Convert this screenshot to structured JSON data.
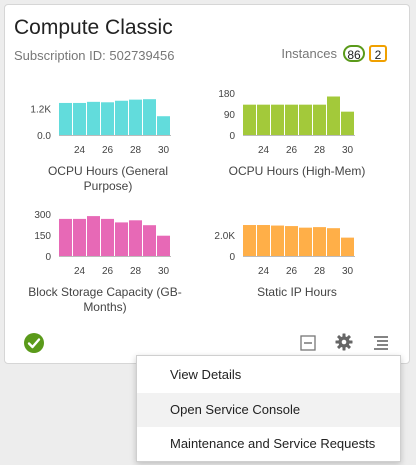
{
  "card": {
    "title": "Compute Classic",
    "subscription": "Subscription ID: 502739456",
    "instances_label": "Instances",
    "instances_green": "86",
    "instances_orange": "2"
  },
  "chart_data": [
    {
      "type": "bar",
      "title": "OCPU Hours (General Purpose)",
      "color": "#62dcdc",
      "categories": [
        23,
        24,
        25,
        26,
        27,
        28,
        29,
        30
      ],
      "values": [
        1450,
        1450,
        1500,
        1480,
        1550,
        1600,
        1620,
        850
      ],
      "ylim": [
        0,
        1900
      ],
      "yticks": [
        {
          "v": 0,
          "label": "0.0"
        },
        {
          "v": 1200,
          "label": "1.2K"
        }
      ],
      "xticks": [
        "24",
        "26",
        "28",
        "30"
      ]
    },
    {
      "type": "bar",
      "title": "OCPU Hours (High-Mem)",
      "color": "#a3c93a",
      "categories": [
        23,
        24,
        25,
        26,
        27,
        28,
        29,
        30
      ],
      "values": [
        130,
        130,
        130,
        130,
        130,
        130,
        165,
        100
      ],
      "ylim": [
        0,
        180
      ],
      "yticks": [
        {
          "v": 0,
          "label": "0"
        },
        {
          "v": 90,
          "label": "90"
        },
        {
          "v": 180,
          "label": "180"
        }
      ],
      "xticks": [
        "24",
        "26",
        "28",
        "30"
      ]
    },
    {
      "type": "bar",
      "title": "Block Storage Capacity (GB-Months)",
      "color": "#e769b6",
      "categories": [
        23,
        24,
        25,
        26,
        27,
        28,
        29,
        30
      ],
      "values": [
        265,
        265,
        285,
        265,
        240,
        255,
        220,
        145
      ],
      "ylim": [
        0,
        300
      ],
      "yticks": [
        {
          "v": 0,
          "label": "0"
        },
        {
          "v": 150,
          "label": "150"
        },
        {
          "v": 300,
          "label": "300"
        }
      ],
      "xticks": [
        "24",
        "26",
        "28",
        "30"
      ]
    },
    {
      "type": "bar",
      "title": "Static IP Hours",
      "color": "#ffaf48",
      "categories": [
        23,
        24,
        25,
        26,
        27,
        28,
        29,
        30
      ],
      "values": [
        2950,
        2950,
        2900,
        2850,
        2700,
        2750,
        2650,
        1750
      ],
      "ylim": [
        0,
        4000
      ],
      "yticks": [
        {
          "v": 0,
          "label": "0"
        },
        {
          "v": 2000,
          "label": "2.0K"
        }
      ],
      "xticks": [
        "24",
        "26",
        "28",
        "30"
      ]
    }
  ],
  "footer": {
    "status_icon": "check-circle-icon",
    "status_color": "#5a9a1a",
    "icons": [
      "minimize-icon",
      "gear-icon",
      "hamburger-menu-icon"
    ]
  },
  "menu": {
    "items": [
      {
        "label": "View Details"
      },
      {
        "label": "Open Service Console"
      },
      {
        "label": "Maintenance and Service Requests"
      }
    ],
    "hovered_index": 1
  }
}
